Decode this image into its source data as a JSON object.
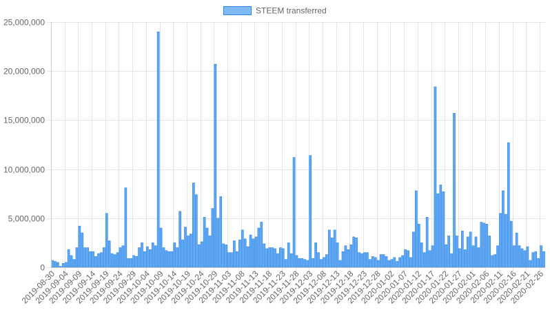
{
  "chart_data": {
    "type": "bar",
    "legend": {
      "position": "top",
      "label": "STEEM transferred"
    },
    "colors": {
      "bar_fill": "#5ea7f5",
      "bar_border": "#2f86e6",
      "grid": "#e5e5e5",
      "axis": "#c8c8c8",
      "text": "#666666"
    },
    "grid": true,
    "ylim": [
      0,
      25000000
    ],
    "y_ticks": [
      0,
      5000000,
      10000000,
      15000000,
      20000000,
      25000000
    ],
    "y_tick_labels": [
      "0",
      "5,000,000",
      "10,000,000",
      "15,000,000",
      "20,000,000",
      "25,000,000"
    ],
    "x_tick_labels": [
      "2019-08-30",
      "2019-09-04",
      "2019-09-09",
      "2019-09-14",
      "2019-09-19",
      "2019-09-24",
      "2019-09-29",
      "2019-10-04",
      "2019-10-09",
      "2019-10-14",
      "2019-10-19",
      "2019-10-24",
      "2019-10-29",
      "2019-11-03",
      "2019-11-08",
      "2019-11-13",
      "2019-11-18",
      "2019-11-23",
      "2019-11-28",
      "2019-12-03",
      "2019-12-08",
      "2019-12-13",
      "2019-12-18",
      "2019-12-23",
      "2019-12-28",
      "2020-01-02",
      "2020-01-07",
      "2020-01-12",
      "2020-01-17",
      "2020-01-22",
      "2020-01-27",
      "2020-02-01",
      "2020-02-06",
      "2020-02-11",
      "2020-02-16",
      "2020-02-21",
      "2020-02-26"
    ],
    "x_start": "2019-08-30",
    "x_end": "2020-02-27",
    "values": [
      700000,
      600000,
      500000,
      100000,
      400000,
      500000,
      1800000,
      1200000,
      800000,
      2000000,
      4200000,
      3500000,
      2000000,
      2000000,
      1600000,
      1600000,
      1100000,
      1400000,
      1500000,
      2000000,
      5500000,
      2700000,
      1400000,
      1300000,
      1500000,
      2000000,
      2200000,
      8100000,
      900000,
      900000,
      1200000,
      1100000,
      2000000,
      2500000,
      1600000,
      2100000,
      1800000,
      2500000,
      2200000,
      24000000,
      4000000,
      2000000,
      1700000,
      1600000,
      1600000,
      2500000,
      2000000,
      5700000,
      2800000,
      4100000,
      3200000,
      3400000,
      8600000,
      7400000,
      2300000,
      2600000,
      5100000,
      4000000,
      3200000,
      6000000,
      20700000,
      5000000,
      7200000,
      2400000,
      2300000,
      1500000,
      1500000,
      2700000,
      1600000,
      2800000,
      3800000,
      2900000,
      2100000,
      3300000,
      2900000,
      3100000,
      4000000,
      4600000,
      2400000,
      1900000,
      2000000,
      2000000,
      1900000,
      1400000,
      2000000,
      1900000,
      800000,
      2500000,
      1400000,
      11200000,
      1200000,
      900000,
      900000,
      800000,
      700000,
      11400000,
      900000,
      2500000,
      1500000,
      800000,
      1000000,
      1300000,
      3800000,
      3000000,
      3800000,
      2500000,
      700000,
      1600000,
      2200000,
      1800000,
      2300000,
      3100000,
      3000000,
      1500000,
      1400000,
      1500000,
      1500000,
      800000,
      1100000,
      1000000,
      700000,
      1300000,
      1300000,
      1100000,
      700000,
      800000,
      1000000,
      600000,
      1000000,
      1200000,
      1800000,
      1700000,
      1000000,
      3600000,
      7800000,
      4400000,
      2500000,
      1500000,
      5100000,
      1700000,
      2200000,
      18400000,
      7500000,
      8400000,
      7700000,
      2300000,
      3200000,
      1400000,
      15700000,
      3200000,
      1900000,
      3700000,
      1800000,
      3100000,
      3600000,
      2200000,
      3100000,
      2000000,
      4600000,
      4500000,
      4400000,
      3200000,
      1200000,
      1300000,
      2200000,
      5500000,
      7800000,
      5400000,
      12700000,
      4700000,
      2200000,
      3500000,
      2200000,
      1900000,
      1700000,
      2100000,
      700000,
      1500000,
      1600000,
      900000,
      2200000,
      1600000
    ]
  }
}
